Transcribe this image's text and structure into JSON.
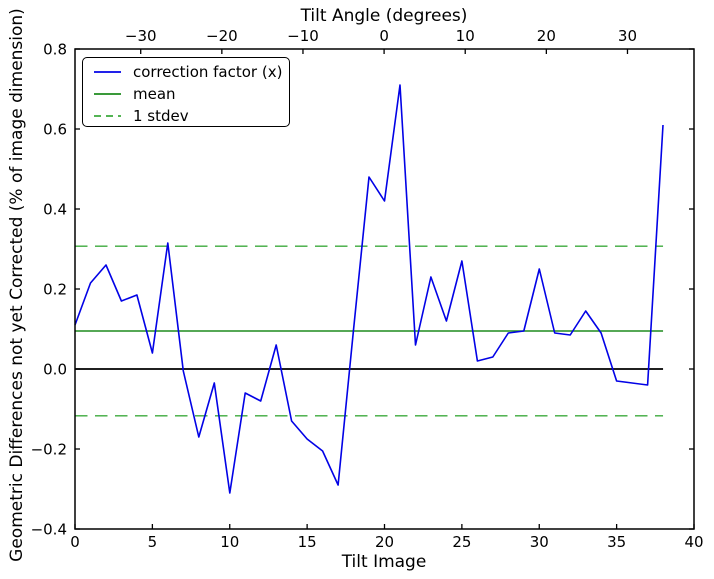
{
  "chart_data": {
    "type": "line",
    "xlabel": "Tilt Image",
    "ylabel": "Geometric Differences not yet Corrected (% of image dimension)",
    "xlim": [
      0,
      40
    ],
    "ylim": [
      -0.4,
      0.8
    ],
    "grid": false,
    "legend_position": "upper left",
    "x_ticks": [
      0,
      5,
      10,
      15,
      20,
      25,
      30,
      35,
      40
    ],
    "x_tick_labels": [
      "0",
      "5",
      "10",
      "15",
      "20",
      "25",
      "30",
      "35",
      "40"
    ],
    "y_ticks": [
      0.8,
      0.6,
      0.4,
      0.2,
      0.0,
      -0.2,
      -0.4
    ],
    "y_tick_labels": [
      "0.8",
      "0.6",
      "0.4",
      "0.2",
      "0.0",
      "−0.2",
      "−0.4"
    ],
    "top_axis": {
      "label": "Tilt Angle (degrees)",
      "lim": [
        -38.1,
        38.2
      ],
      "ticks": [
        -30,
        -20,
        -10,
        0,
        10,
        20,
        30
      ],
      "tick_labels": [
        "−30",
        "−20",
        "−10",
        "0",
        "10",
        "20",
        "30"
      ]
    },
    "x": [
      0,
      1,
      2,
      3,
      4,
      5,
      6,
      7,
      8,
      9,
      10,
      11,
      12,
      13,
      14,
      15,
      16,
      17,
      18,
      19,
      20,
      21,
      22,
      23,
      24,
      25,
      26,
      27,
      28,
      29,
      30,
      31,
      32,
      33,
      34,
      35,
      36,
      37,
      38
    ],
    "series": [
      {
        "name": "correction factor (x)",
        "color": "#0202e6",
        "values": [
          0.11,
          0.215,
          0.26,
          0.17,
          0.185,
          0.04,
          0.315,
          -0.005,
          -0.17,
          -0.035,
          -0.31,
          -0.06,
          -0.08,
          0.06,
          -0.13,
          -0.175,
          -0.205,
          -0.29,
          0.1,
          0.48,
          0.42,
          0.71,
          0.06,
          0.23,
          0.12,
          0.27,
          0.02,
          0.03,
          0.09,
          0.095,
          0.25,
          0.09,
          0.085,
          0.145,
          0.09,
          -0.03,
          -0.035,
          -0.04,
          0.61
        ]
      }
    ],
    "statistics": {
      "mean": 0.095,
      "stdev": 0.212
    },
    "reference_lines": {
      "zero_line": {
        "value": 0.0,
        "color": "#000000",
        "style": "solid"
      },
      "mean_line": {
        "value": 0.095,
        "color": "#1e8c1e",
        "style": "solid"
      },
      "stdev_upper": {
        "value": 0.307,
        "color": "#3caa3c",
        "style": "dashed"
      },
      "stdev_lower": {
        "value": -0.117,
        "color": "#3caa3c",
        "style": "dashed"
      }
    },
    "legend": {
      "entries": [
        {
          "label": "correction factor (x)",
          "color": "#0202e6",
          "style": "solid"
        },
        {
          "label": "mean",
          "color": "#1e8c1e",
          "style": "solid"
        },
        {
          "label": "1 stdev",
          "color": "#3caa3c",
          "style": "dashed"
        }
      ]
    }
  }
}
